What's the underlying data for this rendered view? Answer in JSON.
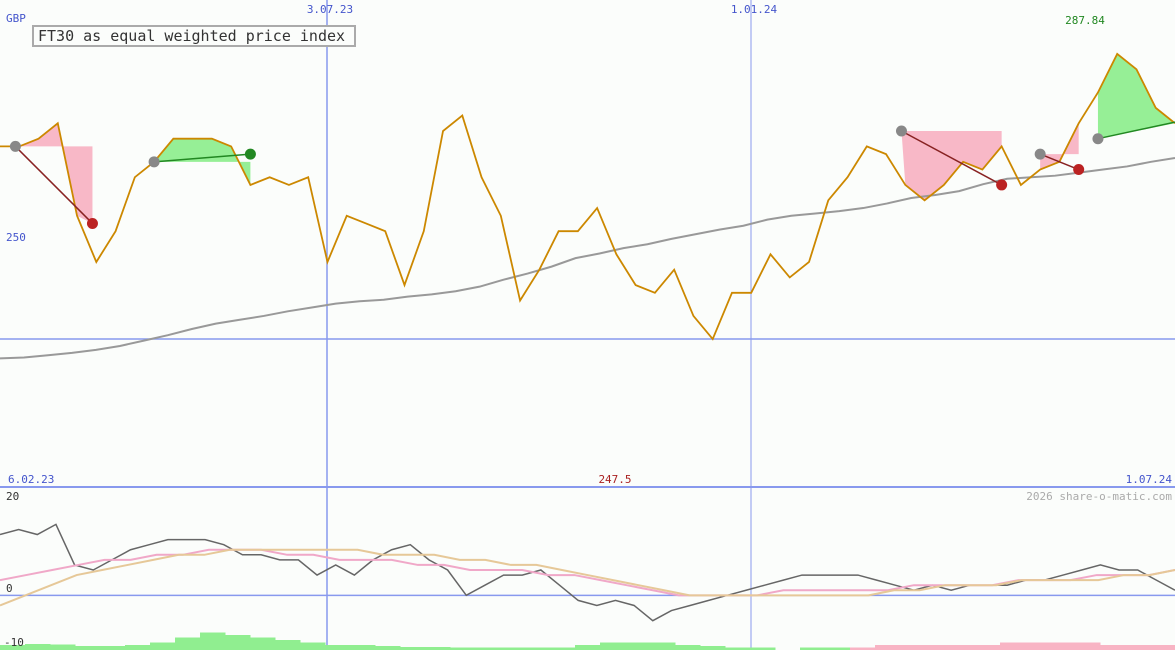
{
  "chart_data": {
    "type": "line",
    "title": "FT30 as equal weighted price index",
    "currency": "GBP",
    "copyright": "2026 share-o-matic.com",
    "x_ticks_top": [
      "3.07.23",
      "1.01.24"
    ],
    "x_ticks_bottom": [
      "6.02.23",
      "1.07.24"
    ],
    "y_ref_label": "250",
    "y_ref_value": 250,
    "max_label": "287.84",
    "min_label": "247.5",
    "price_ylim": [
      230.8,
      294
    ],
    "osc_ticks": [
      "20",
      "0",
      "-10"
    ],
    "osc_ylim": [
      -10,
      20
    ],
    "series": [
      {
        "name": "price",
        "color": "#cc8800",
        "values": [
          275,
          275,
          276,
          278,
          266,
          260,
          264,
          271,
          273,
          276,
          276,
          276,
          275,
          270,
          271,
          270,
          271,
          260,
          266,
          265,
          264,
          257,
          264,
          277,
          279,
          271,
          266,
          255,
          259,
          264,
          264,
          267,
          261,
          257,
          256,
          259,
          253,
          250,
          256,
          256,
          261,
          258,
          260,
          268,
          271,
          275,
          274,
          270,
          268,
          270,
          273,
          272,
          275,
          270,
          272,
          273,
          278,
          282,
          287,
          285,
          280,
          278
        ]
      },
      {
        "name": "moving average",
        "color": "#999999",
        "values": [
          247.5,
          247.6,
          247.9,
          248.2,
          248.6,
          249.1,
          249.8,
          250.5,
          251.3,
          252.0,
          252.5,
          253.0,
          253.6,
          254.1,
          254.6,
          254.9,
          255.1,
          255.5,
          255.8,
          256.2,
          256.8,
          257.7,
          258.5,
          259.4,
          260.5,
          261.1,
          261.8,
          262.3,
          263.0,
          263.6,
          264.2,
          264.7,
          265.5,
          266.0,
          266.3,
          266.6,
          267.0,
          267.6,
          268.3,
          268.7,
          269.2,
          270.1,
          270.8,
          271.0,
          271.2,
          271.6,
          272.0,
          272.4,
          273.0,
          273.5
        ]
      }
    ],
    "trades": [
      {
        "from": [
          0.8,
          275
        ],
        "to": [
          4.8,
          265
        ],
        "result": "loss"
      },
      {
        "from": [
          8.0,
          273
        ],
        "to": [
          13.0,
          274
        ],
        "result": "gain"
      },
      {
        "from": [
          46.8,
          277
        ],
        "to": [
          52.0,
          270
        ],
        "result": "loss"
      },
      {
        "from": [
          54.0,
          274
        ],
        "to": [
          56.0,
          272
        ],
        "result": "loss"
      },
      {
        "from": [
          57.0,
          276
        ],
        "to": [
          70.0,
          283
        ],
        "result": "gain"
      }
    ],
    "oscillator": [
      {
        "name": "momentum",
        "color": "#666666",
        "values": [
          12,
          13,
          12,
          14,
          6,
          5,
          7,
          9,
          10,
          11,
          11,
          11,
          10,
          8,
          8,
          7,
          7,
          4,
          6,
          4,
          7,
          9,
          10,
          7,
          5,
          0,
          2,
          4,
          4,
          5,
          2,
          -1,
          -2,
          -1,
          -2,
          -5,
          -3,
          -2,
          -1,
          0,
          1,
          2,
          3,
          4,
          4,
          4,
          4,
          3,
          2,
          1,
          2,
          1,
          2,
          2,
          2,
          3,
          3,
          4,
          5,
          6,
          5,
          5,
          3,
          1
        ]
      },
      {
        "name": "signal",
        "color": "#f0a8c8",
        "values": [
          3,
          4,
          5,
          6,
          7,
          7,
          8,
          8,
          9,
          9,
          9,
          8,
          8,
          7,
          7,
          7,
          6,
          6,
          5,
          5,
          5,
          4,
          4,
          3,
          2,
          1,
          0,
          0,
          0,
          0,
          1,
          1,
          1,
          1,
          1,
          2,
          2,
          2,
          2,
          3,
          3,
          3,
          4,
          4,
          4,
          5
        ]
      },
      {
        "name": "slow signal",
        "color": "#e6c898",
        "values": [
          -2,
          0,
          2,
          4,
          5,
          6,
          7,
          8,
          8,
          9,
          9,
          9,
          9,
          9,
          9,
          8,
          8,
          8,
          7,
          7,
          6,
          6,
          5,
          4,
          3,
          2,
          1,
          0,
          0,
          0,
          0,
          0,
          0,
          0,
          0,
          1,
          1,
          2,
          2,
          2,
          3,
          3,
          3,
          3,
          4,
          4,
          5
        ]
      }
    ],
    "histogram": [
      1,
      1.2,
      1.1,
      0.8,
      0.8,
      1,
      1.5,
      2.5,
      3.5,
      3,
      2.5,
      2,
      1.5,
      1,
      1,
      0.8,
      0.6,
      0.6,
      0.5,
      0.5,
      0.5,
      0.5,
      0.5,
      1,
      1.5,
      1.5,
      1.5,
      1,
      0.8,
      0.5,
      0.5,
      0,
      0.5,
      0.5,
      -0.5,
      -1,
      -1,
      -1,
      -1,
      -1,
      -1.5,
      -1.5,
      -1.5,
      -1.5,
      -1,
      -1,
      -1
    ]
  }
}
